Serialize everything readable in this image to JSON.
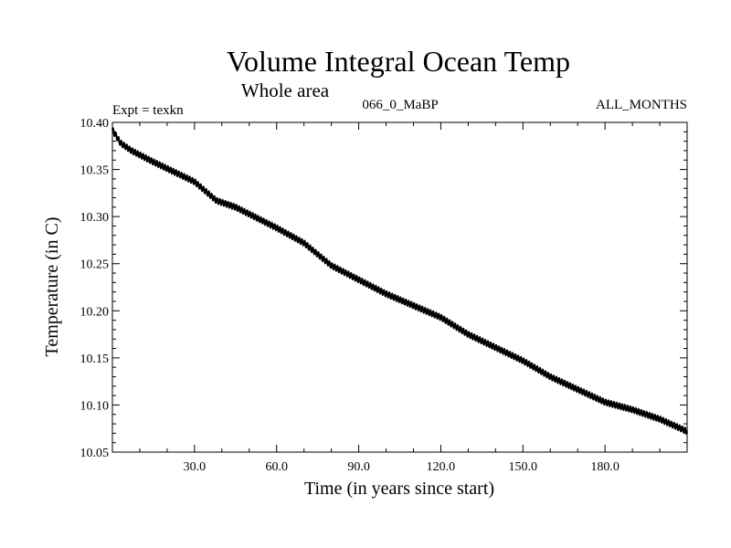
{
  "chart_data": {
    "type": "line",
    "title": "Volume Integral Ocean Temp",
    "subtitle": "Whole area",
    "info_left": "Expt = texkn",
    "info_center": "066_0_MaBP",
    "info_right": "ALL_MONTHS",
    "xlabel": "Time (in years since start)",
    "ylabel": "Temperature (in C)",
    "xlim": [
      0,
      210
    ],
    "ylim": [
      10.05,
      10.4
    ],
    "x_ticks": [
      30,
      60,
      90,
      120,
      150,
      180
    ],
    "x_tick_labels": [
      "30.0",
      "60.0",
      "90.0",
      "120.0",
      "150.0",
      "180.0"
    ],
    "y_ticks": [
      10.05,
      10.1,
      10.15,
      10.2,
      10.25,
      10.3,
      10.35,
      10.4
    ],
    "y_tick_labels": [
      "10.05",
      "10.10",
      "10.15",
      "10.20",
      "10.25",
      "10.30",
      "10.35",
      "10.40"
    ],
    "seasonal_amplitude": 0.003,
    "series": [
      {
        "name": "Volume integral ocean temperature",
        "x": [
          0,
          3,
          7,
          15,
          30,
          38,
          45,
          60,
          65,
          70,
          80,
          90,
          100,
          120,
          130,
          150,
          160,
          180,
          190,
          200,
          210
        ],
        "y": [
          10.392,
          10.378,
          10.37,
          10.358,
          10.337,
          10.317,
          10.31,
          10.288,
          10.28,
          10.272,
          10.248,
          10.233,
          10.218,
          10.193,
          10.175,
          10.147,
          10.13,
          10.103,
          10.095,
          10.085,
          10.072
        ]
      }
    ]
  }
}
